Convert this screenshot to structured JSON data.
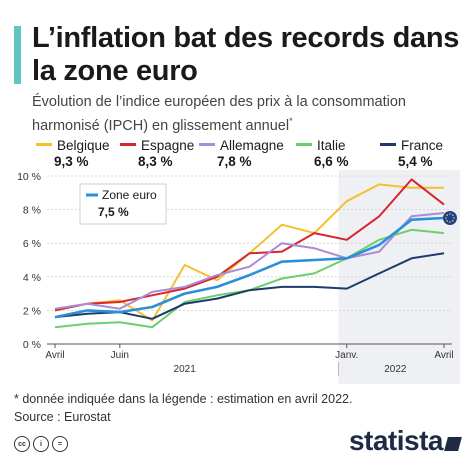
{
  "title": "L’inflation bat des records dans la zone euro",
  "subtitle": "Évolution de l’indice européen des prix à la consommation harmonisé (IPCH) en glissement annuel",
  "subtitle_mark": "*",
  "footnote": "* donnée indiquée dans la légende : estimation en avril 2022.",
  "source": "Source : Eurostat",
  "brand": "statista",
  "colors": {
    "accent": "#5fc6c3",
    "belgique": "#f2c12e",
    "espagne": "#d7262e",
    "allemagne": "#a98bd6",
    "italie": "#6dce6d",
    "france": "#1c3b6b",
    "zone_euro": "#2b8fd8",
    "highlight": "#eef0f4"
  },
  "chart_data": {
    "type": "line",
    "x": [
      "2021-04",
      "2021-05",
      "2021-06",
      "2021-07",
      "2021-08",
      "2021-09",
      "2021-10",
      "2021-11",
      "2021-12",
      "2022-01",
      "2022-02",
      "2022-03",
      "2022-04"
    ],
    "x_ticks": [
      "Avril",
      "Juin",
      "Janv.",
      "Avril"
    ],
    "x_years": [
      "2021",
      "2022"
    ],
    "y_ticks": [
      "0 %",
      "2 %",
      "4 %",
      "6 %",
      "8 %",
      "10 %"
    ],
    "ylim": [
      0,
      10
    ],
    "grid": true,
    "highlighted_range": [
      "2022-01",
      "2022-04"
    ],
    "series": [
      {
        "name": "Belgique",
        "legend_value": "9,3 %",
        "values": [
          2.0,
          2.4,
          2.6,
          1.4,
          4.7,
          3.8,
          5.4,
          7.1,
          6.6,
          8.5,
          9.5,
          9.3,
          9.3
        ]
      },
      {
        "name": "Espagne",
        "legend_value": "8,3 %",
        "values": [
          2.0,
          2.4,
          2.5,
          2.9,
          3.3,
          4.0,
          5.4,
          5.5,
          6.6,
          6.2,
          7.6,
          9.8,
          8.3
        ]
      },
      {
        "name": "Allemagne",
        "legend_value": "7,8 %",
        "values": [
          2.1,
          2.4,
          2.1,
          3.1,
          3.4,
          4.1,
          4.6,
          6.0,
          5.7,
          5.1,
          5.5,
          7.6,
          7.8
        ]
      },
      {
        "name": "Italie",
        "legend_value": "6,6 %",
        "values": [
          1.0,
          1.2,
          1.3,
          1.0,
          2.5,
          2.9,
          3.2,
          3.9,
          4.2,
          5.1,
          6.2,
          6.8,
          6.6
        ]
      },
      {
        "name": "France",
        "legend_value": "5,4 %",
        "values": [
          1.6,
          1.8,
          1.9,
          1.5,
          2.4,
          2.7,
          3.2,
          3.4,
          3.4,
          3.3,
          4.2,
          5.1,
          5.4
        ]
      },
      {
        "name": "Zone euro",
        "legend_value": "7,5 %",
        "values": [
          1.6,
          2.0,
          1.9,
          2.2,
          3.0,
          3.4,
          4.1,
          4.9,
          5.0,
          5.1,
          5.9,
          7.4,
          7.5
        ]
      }
    ]
  }
}
